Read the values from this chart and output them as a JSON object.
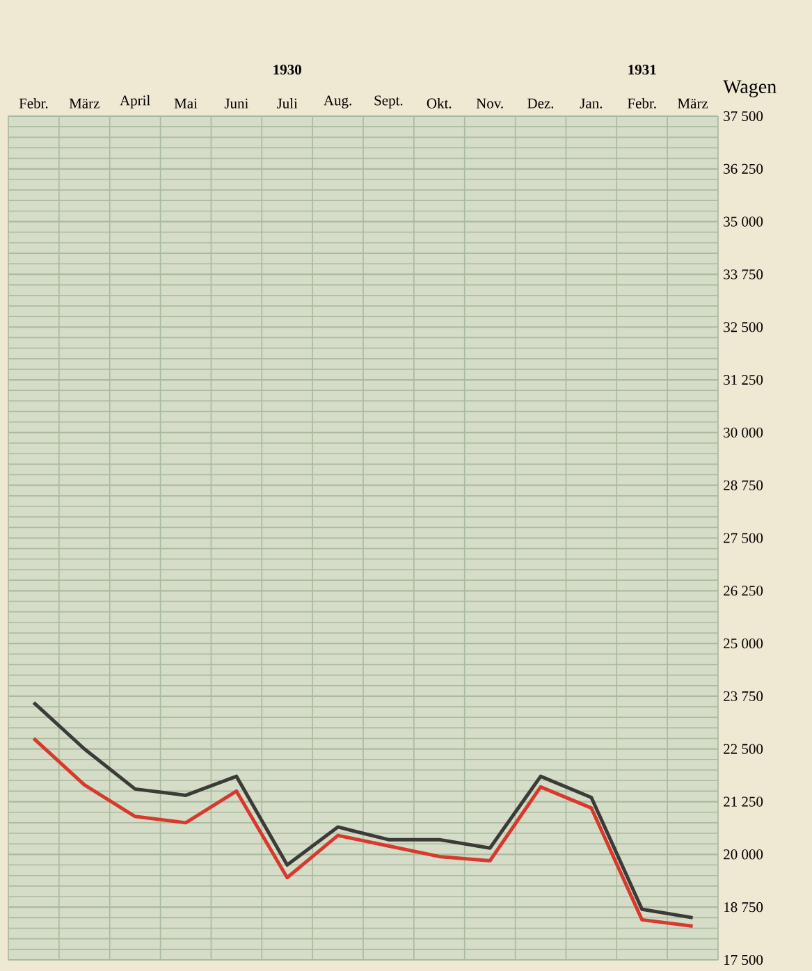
{
  "chart_data": {
    "type": "line",
    "categories": [
      "Febr.",
      "März",
      "April",
      "Mai",
      "Juni",
      "Juli",
      "Aug.",
      "Sept.",
      "Okt.",
      "Nov.",
      "Dez.",
      "Jan.",
      "Febr.",
      "März"
    ],
    "series": [
      {
        "color": "#3b3b37",
        "values": [
          23600,
          22500,
          21550,
          21400,
          21850,
          19750,
          20650,
          20350,
          20350,
          20150,
          21850,
          21350,
          18700,
          18500
        ]
      },
      {
        "color": "#d8392e",
        "values": [
          22750,
          21650,
          20900,
          20750,
          21500,
          19450,
          20450,
          20200,
          19950,
          19850,
          21600,
          21100,
          18450,
          18300
        ]
      }
    ],
    "ylabel": "Wagen",
    "annotations": [
      "1930",
      "1931"
    ],
    "ylim": [
      17500,
      37500
    ],
    "yticks": [
      {
        "value": 17500,
        "label": "17 500"
      },
      {
        "value": 18750,
        "label": "18 750"
      },
      {
        "value": 20000,
        "label": "20 000"
      },
      {
        "value": 21250,
        "label": "21 250"
      },
      {
        "value": 22500,
        "label": "22 500"
      },
      {
        "value": 23750,
        "label": "23 750"
      },
      {
        "value": 25000,
        "label": "25 000"
      },
      {
        "value": 26250,
        "label": "26 250"
      },
      {
        "value": 27500,
        "label": "27 500"
      },
      {
        "value": 28750,
        "label": "28 750"
      },
      {
        "value": 30000,
        "label": "30 000"
      },
      {
        "value": 31250,
        "label": "31 250"
      },
      {
        "value": 32500,
        "label": "32 500"
      },
      {
        "value": 33750,
        "label": "33 750"
      },
      {
        "value": 35000,
        "label": "35 000"
      },
      {
        "value": 36250,
        "label": "36 250"
      },
      {
        "value": 37500,
        "label": "37 500"
      }
    ],
    "grid": true,
    "line_style": "solid",
    "marker": "none"
  }
}
